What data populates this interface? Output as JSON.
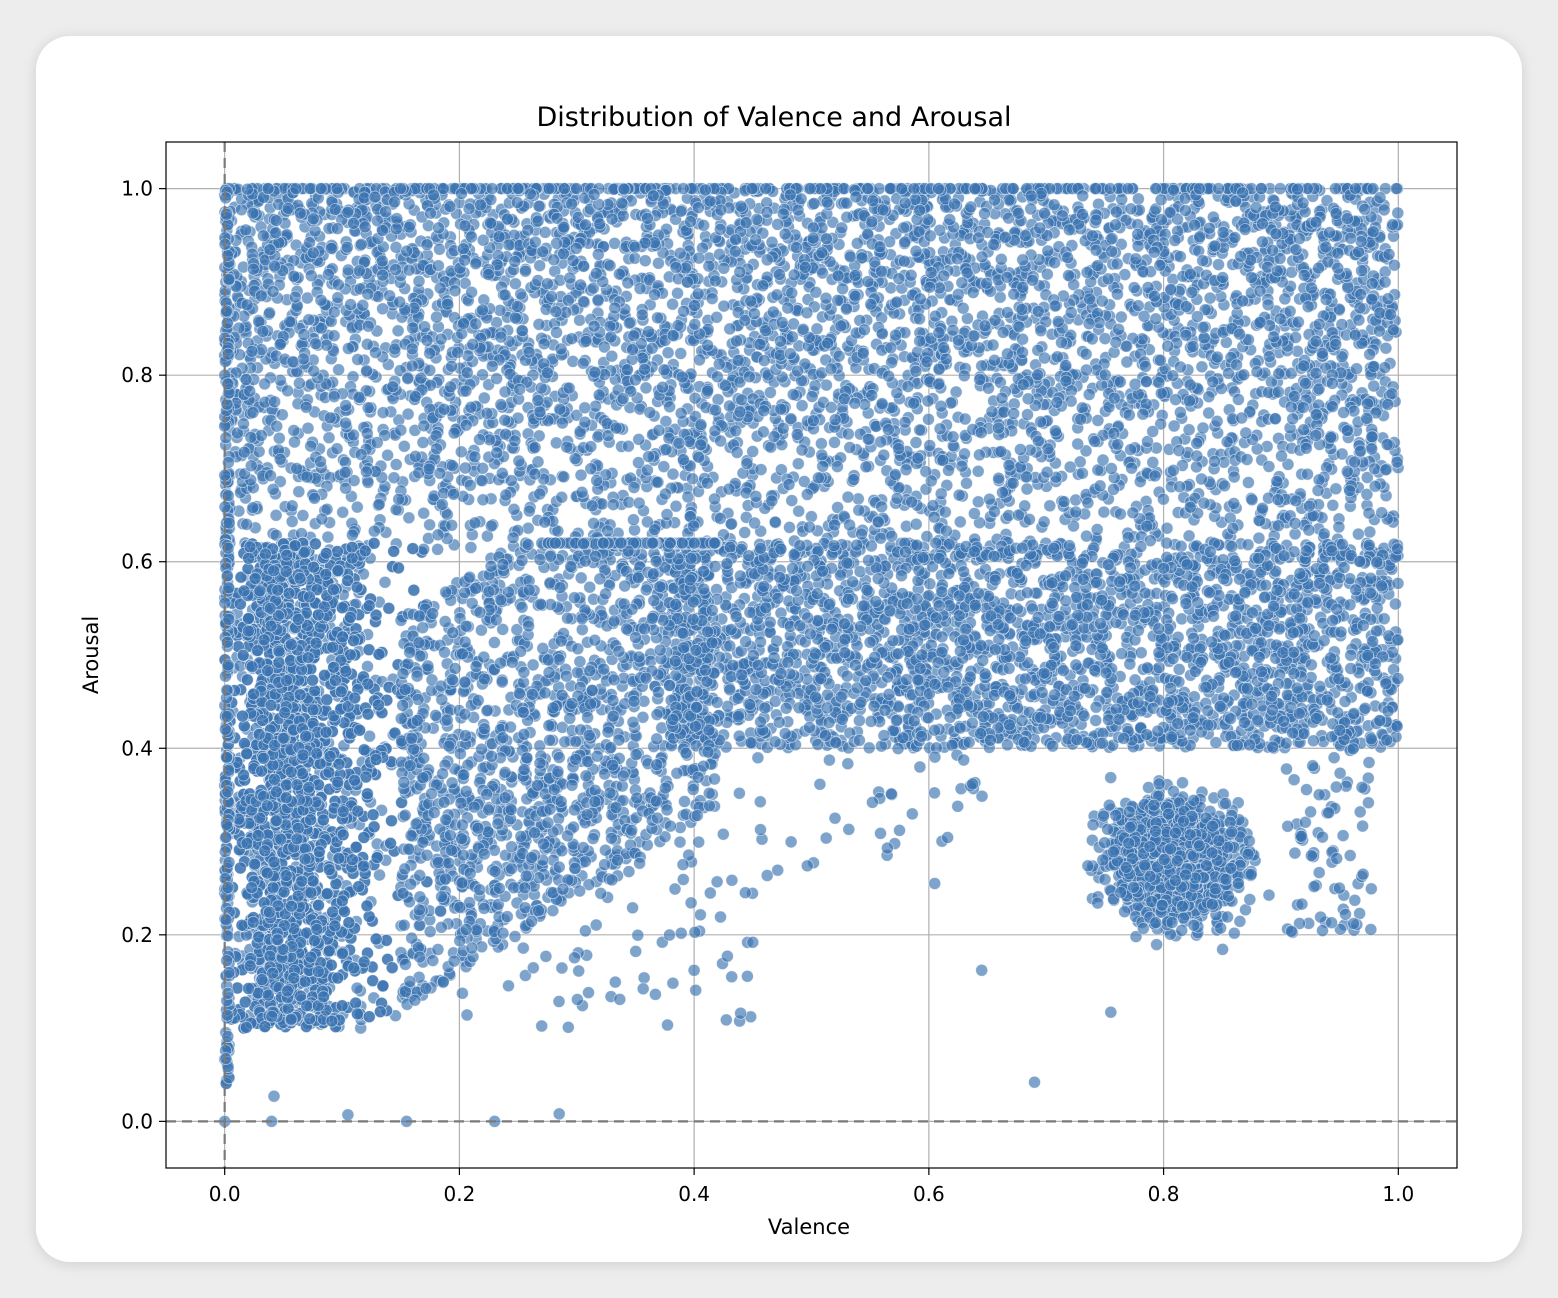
{
  "chart_data": {
    "type": "scatter",
    "title": "Distribution of Valence and Arousal",
    "xlabel": "Valence",
    "ylabel": "Arousal",
    "xlim": [
      -0.05,
      1.05
    ],
    "ylim": [
      -0.05,
      1.05
    ],
    "xticks": [
      "0.0",
      "0.2",
      "0.4",
      "0.6",
      "0.8",
      "1.0"
    ],
    "yticks": [
      "0.0",
      "0.2",
      "0.4",
      "0.6",
      "0.8",
      "1.0"
    ],
    "xtick_values": [
      0.0,
      0.2,
      0.4,
      0.6,
      0.8,
      1.0
    ],
    "ytick_values": [
      0.0,
      0.2,
      0.4,
      0.6,
      0.8,
      1.0
    ],
    "grid": true,
    "reference_lines": [
      {
        "orientation": "horizontal",
        "value": 0.0,
        "style": "dashed"
      },
      {
        "orientation": "vertical",
        "value": 0.0,
        "style": "dashed"
      }
    ],
    "marker_color": "#3a73b1",
    "marker_edge_color": "#ffffff",
    "marker_alpha": 0.65,
    "approx_point_count": 60000,
    "density_regions": [
      {
        "x_range": [
          0.0,
          1.0
        ],
        "y_range": [
          0.6,
          1.0
        ],
        "description": "dense band across all valence values"
      },
      {
        "x_range": [
          0.0,
          0.2
        ],
        "y_range": [
          0.1,
          0.6
        ],
        "description": "dense low-valence cluster"
      },
      {
        "x_range": [
          0.4,
          1.0
        ],
        "y_range": [
          0.4,
          0.6
        ],
        "description": "dense mid-arousal band"
      },
      {
        "x_range": [
          0.72,
          0.9
        ],
        "y_range": [
          0.18,
          0.4
        ],
        "description": "separate cluster at high valence, low arousal"
      }
    ],
    "sample_points": [
      {
        "x": 0.0,
        "y": 0.0
      },
      {
        "x": 0.04,
        "y": 0.0
      },
      {
        "x": 0.155,
        "y": 0.0
      },
      {
        "x": 0.23,
        "y": 0.0
      },
      {
        "x": 0.285,
        "y": 0.008
      },
      {
        "x": 0.105,
        "y": 0.007
      },
      {
        "x": 0.042,
        "y": 0.027
      },
      {
        "x": 0.69,
        "y": 0.042
      },
      {
        "x": 0.4,
        "y": 0.162
      },
      {
        "x": 0.432,
        "y": 0.155
      },
      {
        "x": 0.45,
        "y": 0.192
      },
      {
        "x": 0.645,
        "y": 0.162
      },
      {
        "x": 0.755,
        "y": 0.117
      },
      {
        "x": 0.575,
        "y": 0.312
      },
      {
        "x": 0.605,
        "y": 0.255
      },
      {
        "x": 0.955,
        "y": 0.222
      },
      {
        "x": 0.97,
        "y": 0.265
      },
      {
        "x": 0.977,
        "y": 0.41
      },
      {
        "x": 0.52,
        "y": 0.325
      },
      {
        "x": 0.31,
        "y": 0.138
      }
    ]
  }
}
